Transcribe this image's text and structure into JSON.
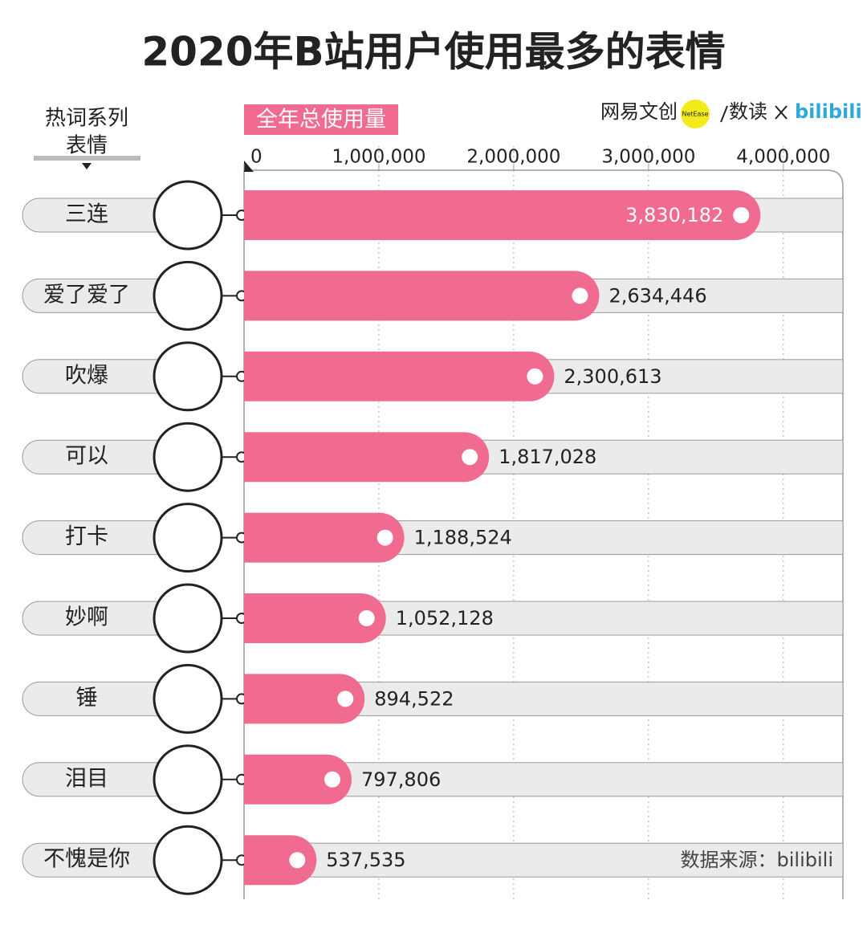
{
  "chart_data": {
    "type": "bar",
    "orientation": "horizontal",
    "title": "2020年B站用户使用最多的表情",
    "category_header": [
      "热词系列",
      "表情"
    ],
    "axis_label": "全年总使用量",
    "brands": [
      "网易文创",
      "NetEase",
      "数读",
      "bilibili"
    ],
    "source": "数据来源：bilibili",
    "categories": [
      "三连",
      "爱了爱了",
      "吹爆",
      "可以",
      "打卡",
      "妙啊",
      "锤",
      "泪目",
      "不愧是你"
    ],
    "values": [
      3830182,
      2634446,
      2300613,
      1817028,
      1188524,
      1052128,
      894522,
      797806,
      537535
    ],
    "value_labels": [
      "3,830,182",
      "2,634,446",
      "2,300,613",
      "1,817,028",
      "1,188,524",
      "1,052,128",
      "894,522",
      "797,806",
      "537,535"
    ],
    "color": "#f06b8f",
    "xlim": [
      0,
      4400000
    ],
    "xticks": [
      0,
      {
        "value": 1000000,
        "label": "1,000,000"
      },
      {
        "value": 2000000,
        "label": "2,000,000"
      },
      {
        "value": 3000000,
        "label": "3,000,000"
      },
      {
        "value": 4000000,
        "label": "4,000,000"
      }
    ],
    "grid": true
  }
}
